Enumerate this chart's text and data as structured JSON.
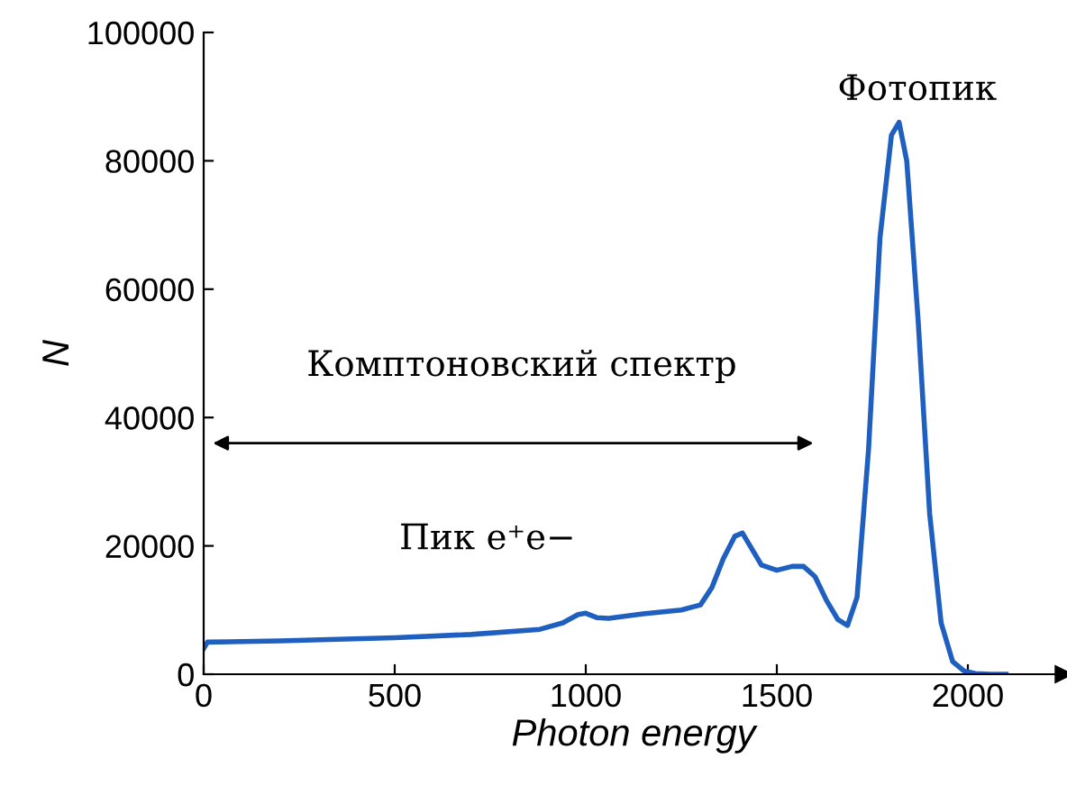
{
  "chart_data": {
    "type": "line",
    "xlabel": "Photon energy",
    "ylabel": "N",
    "xlim": [
      0,
      2250
    ],
    "ylim": [
      0,
      100000
    ],
    "xticks": [
      0,
      500,
      1000,
      1500,
      2000
    ],
    "yticks": [
      0,
      20000,
      40000,
      60000,
      80000,
      100000
    ],
    "grid": false,
    "marker": "none",
    "line_style": "solid",
    "series": [
      {
        "color": "#1f5fbf",
        "x": [
          0,
          10,
          200,
          500,
          700,
          880,
          940,
          980,
          1000,
          1030,
          1060,
          1150,
          1250,
          1300,
          1330,
          1360,
          1390,
          1410,
          1430,
          1460,
          1500,
          1540,
          1570,
          1600,
          1630,
          1660,
          1685,
          1710,
          1740,
          1770,
          1800,
          1820,
          1840,
          1870,
          1900,
          1930,
          1960,
          1990,
          2020,
          2060,
          2100
        ],
        "values": [
          4000,
          5000,
          5200,
          5700,
          6200,
          7000,
          8000,
          9300,
          9500,
          8800,
          8700,
          9400,
          10000,
          10800,
          13500,
          18000,
          21500,
          22000,
          20000,
          17000,
          16200,
          16800,
          16800,
          15200,
          11500,
          8500,
          7600,
          12000,
          35000,
          68000,
          84000,
          86000,
          80000,
          55000,
          25000,
          8000,
          2000,
          500,
          100,
          0,
          0
        ]
      }
    ],
    "annotations": [
      "Комптоновский спектр",
      "Фотопик",
      "Пик e⁺e−"
    ]
  }
}
